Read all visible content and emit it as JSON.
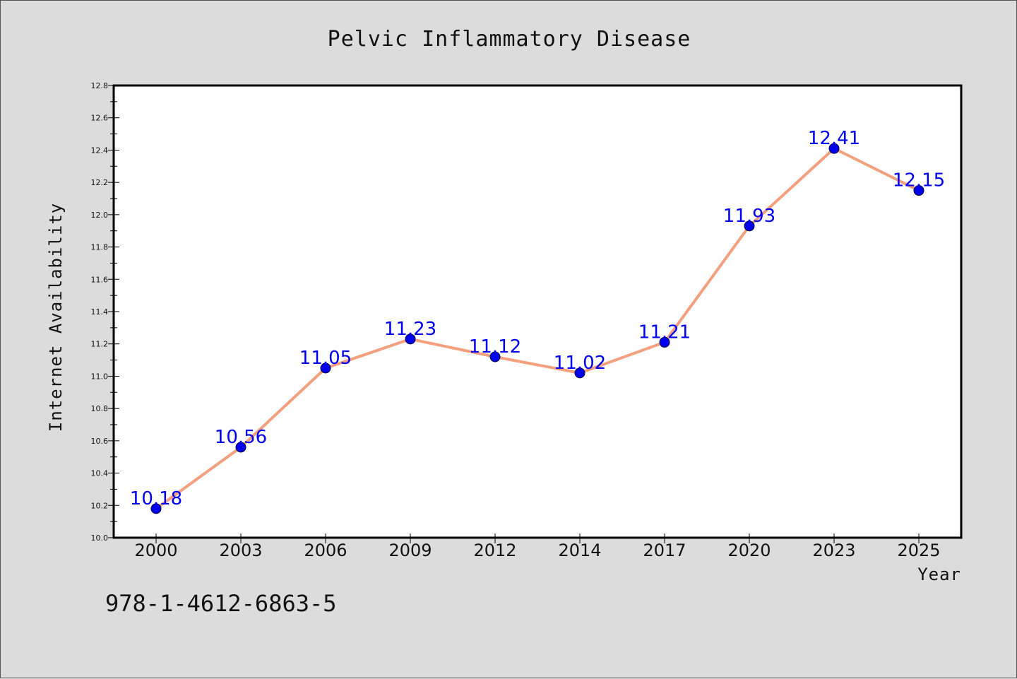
{
  "chart_data": {
    "type": "line",
    "title": "Pelvic Inflammatory Disease",
    "xlabel": "Year",
    "ylabel": "Internet Availability",
    "categories": [
      "2000",
      "2003",
      "2006",
      "2009",
      "2012",
      "2014",
      "2017",
      "2020",
      "2023",
      "2025"
    ],
    "series": [
      {
        "values": [
          10.18,
          10.56,
          11.05,
          11.23,
          11.12,
          11.02,
          11.21,
          11.93,
          12.41,
          12.15
        ],
        "line_color": "#f4a07f",
        "marker_color": "#0000ee"
      }
    ],
    "data_labels": [
      "10.18",
      "10.56",
      "11.05",
      "11.23",
      "11.12",
      "11.02",
      "11.21",
      "11.93",
      "12.41",
      "12.15"
    ],
    "ylim": [
      10.0,
      12.8
    ],
    "yticks": [
      "10.0",
      "10.2",
      "10.4",
      "10.6",
      "10.8",
      "11.0",
      "11.2",
      "11.4",
      "11.6",
      "11.8",
      "12.0",
      "12.2",
      "12.4",
      "12.6",
      "12.8"
    ],
    "grid": false,
    "label_color": "#0000ee"
  },
  "footer": {
    "isbn": "978-1-4612-6863-5"
  }
}
